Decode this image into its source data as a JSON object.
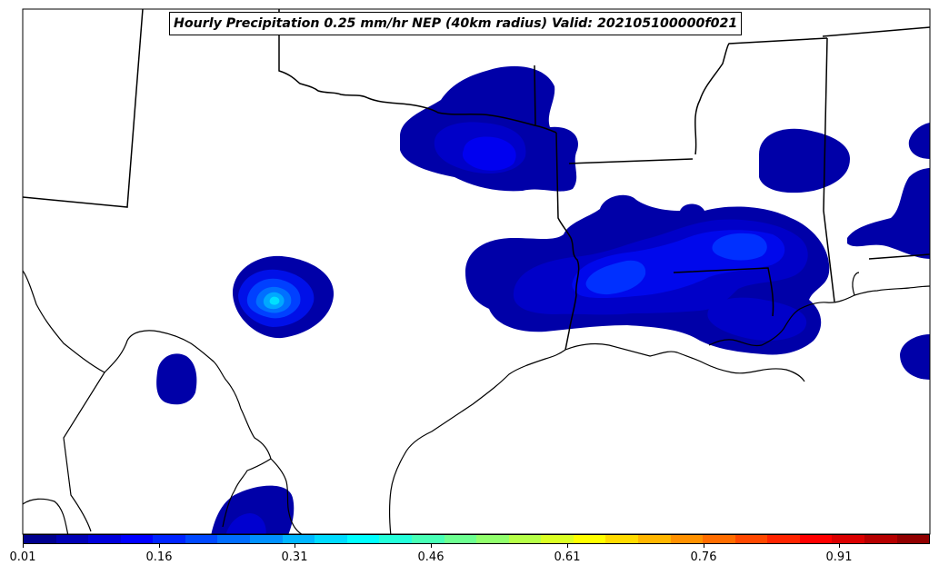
{
  "title": "Hourly Precipitation 0.25 mm/hr NEP (40km radius) Valid: 202105100000f021",
  "colorbar": {
    "colors": [
      "#00008f",
      "#0000b5",
      "#0000db",
      "#0000ff",
      "#0024ff",
      "#0048ff",
      "#006dff",
      "#0091ff",
      "#00b6ff",
      "#00dbff",
      "#00ffff",
      "#24ffdb",
      "#48ffb6",
      "#6dff91",
      "#91ff6d",
      "#b6ff48",
      "#dbff24",
      "#ffff00",
      "#ffdb00",
      "#ffb600",
      "#ff9100",
      "#ff6d00",
      "#ff4800",
      "#ff2400",
      "#ff0000",
      "#db0000",
      "#b60000",
      "#910000"
    ],
    "ticks": [
      {
        "label": "0.01",
        "frac": 0.0
      },
      {
        "label": "0.16",
        "frac": 0.15
      },
      {
        "label": "0.31",
        "frac": 0.3
      },
      {
        "label": "0.46",
        "frac": 0.45
      },
      {
        "label": "0.61",
        "frac": 0.6
      },
      {
        "label": "0.76",
        "frac": 0.75
      },
      {
        "label": "0.91",
        "frac": 0.9
      }
    ]
  }
}
